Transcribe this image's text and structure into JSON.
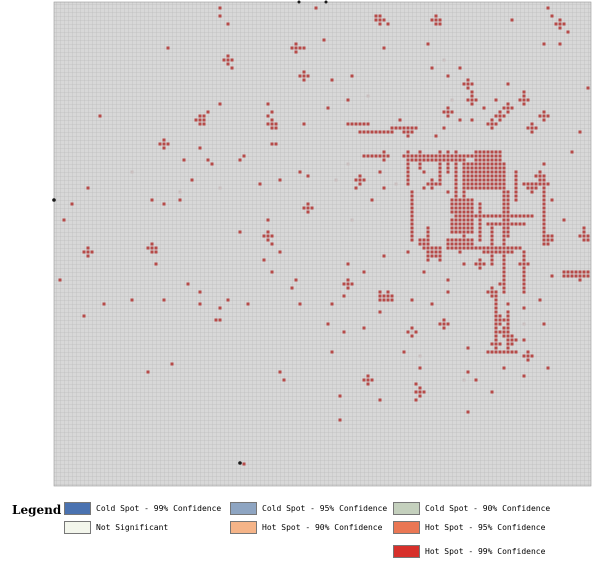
{
  "legend": {
    "title": "Legend",
    "items": [
      {
        "label": "Cold Spot - 99% Confidence",
        "color": "#4a72b0"
      },
      {
        "label": "Cold Spot - 95% Confidence",
        "color": "#8ea5c2"
      },
      {
        "label": "Cold Spot - 90% Confidence",
        "color": "#c4d0bd"
      },
      {
        "label": "Not Significant",
        "color": "#f3f6ec"
      },
      {
        "label": "Hot Spot - 90% Confidence",
        "color": "#f5b488"
      },
      {
        "label": "Hot Spot - 95% Confidence",
        "color": "#ea7754"
      },
      {
        "label": "Hot Spot - 99% Confidence",
        "color": "#d7302b"
      }
    ]
  },
  "map": {
    "background_color": "#d8d8d8",
    "grid_line_color": "#bcbcbc",
    "hot_cell_color": "#b64a48",
    "light_cell_color": "#c9bfbf"
  }
}
